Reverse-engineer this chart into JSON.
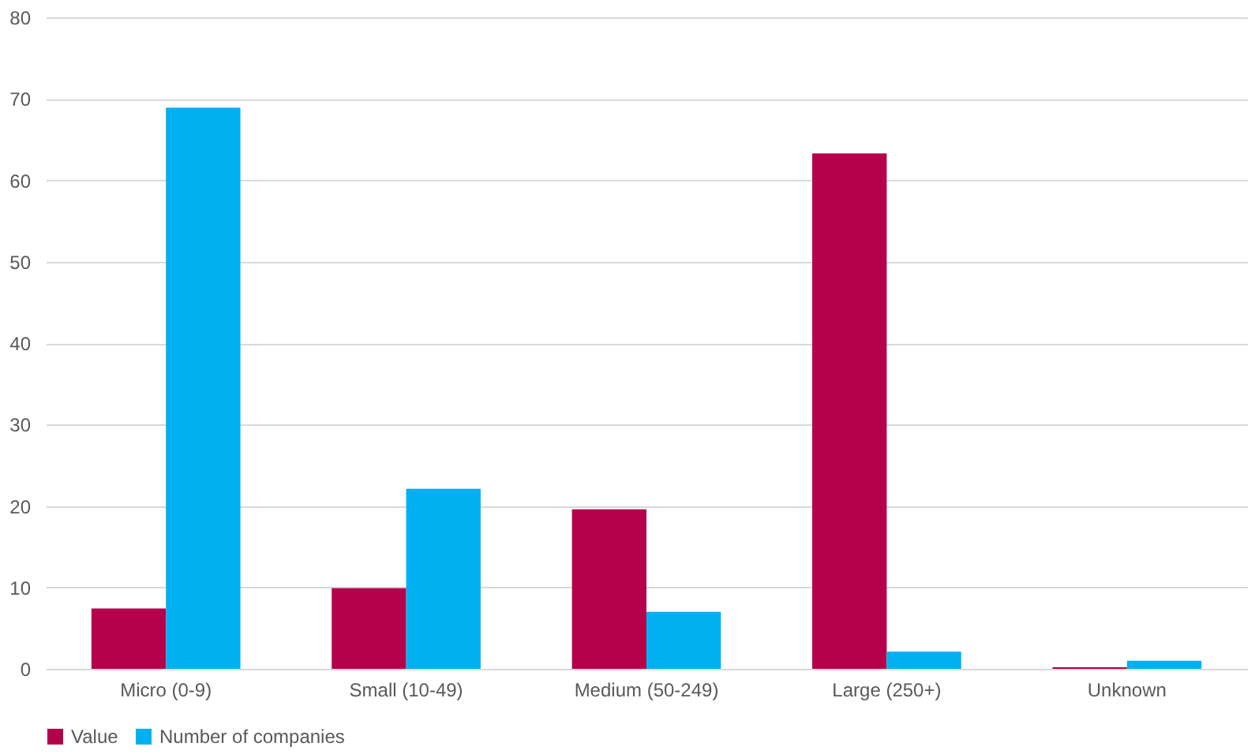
{
  "chart_data": {
    "type": "bar",
    "categories": [
      "Micro (0-9)",
      "Small (10-49)",
      "Medium (50-249)",
      "Large (250+)",
      "Unknown"
    ],
    "series": [
      {
        "name": "Value",
        "color": "#b5004b",
        "values": [
          7.4,
          9.9,
          19.6,
          63.3,
          0.2
        ]
      },
      {
        "name": "Number of companies",
        "color": "#00b0f0",
        "values": [
          68.9,
          22.1,
          7.0,
          2.1,
          1.0
        ]
      }
    ],
    "ylim": [
      0,
      80
    ],
    "yticks": [
      0,
      10,
      20,
      30,
      40,
      50,
      60,
      70,
      80
    ],
    "grid": "y",
    "legend": "bottom"
  }
}
